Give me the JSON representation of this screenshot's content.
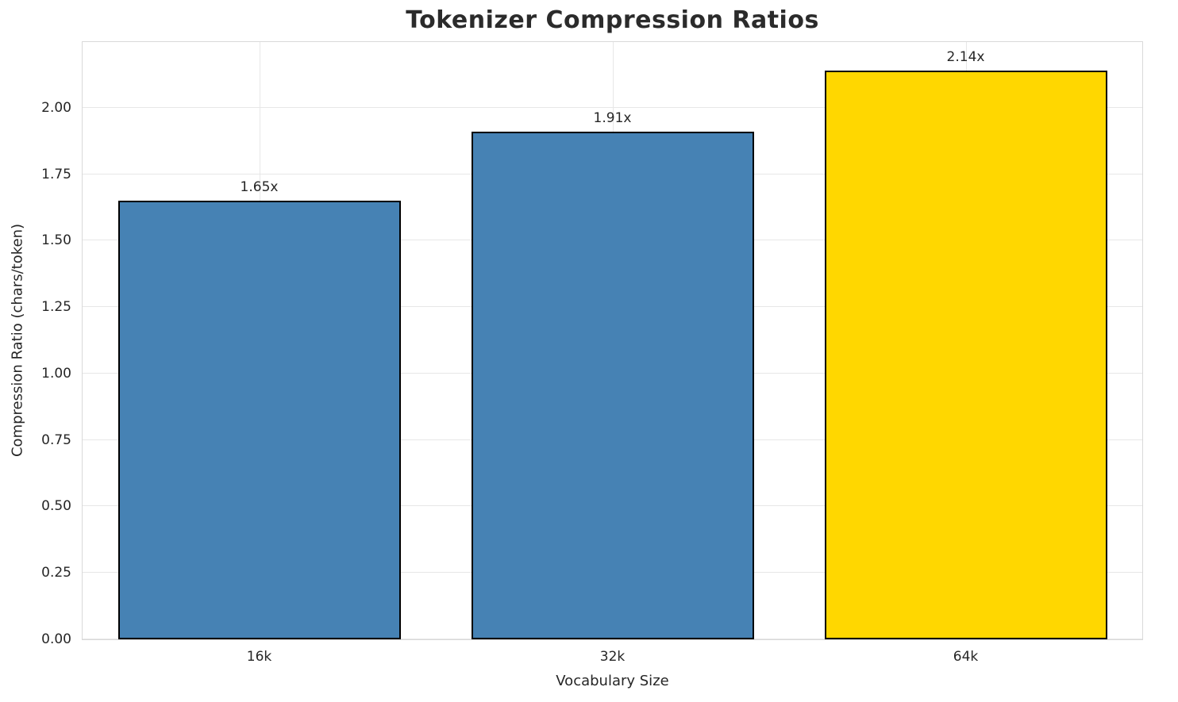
{
  "chart_data": {
    "type": "bar",
    "title": "Tokenizer Compression Ratios",
    "xlabel": "Vocabulary Size",
    "ylabel": "Compression Ratio (chars/token)",
    "categories": [
      "16k",
      "32k",
      "64k"
    ],
    "values": [
      1.65,
      1.91,
      2.14
    ],
    "bar_labels": [
      "1.65x",
      "1.91x",
      "2.14x"
    ],
    "bar_colors": [
      "#4682B4",
      "#4682B4",
      "#FFD700"
    ],
    "bar_edge_color": "#000000",
    "bar_width_fraction": 0.8,
    "ylim": [
      0,
      2.247
    ],
    "yticks": [
      0.0,
      0.25,
      0.5,
      0.75,
      1.0,
      1.25,
      1.5,
      1.75,
      2.0
    ],
    "ytick_labels": [
      "0.00",
      "0.25",
      "0.50",
      "0.75",
      "1.00",
      "1.25",
      "1.50",
      "1.75",
      "2.00"
    ],
    "grid": true,
    "grid_color": "#e7e7e7",
    "legend": "none",
    "background": "#ffffff"
  }
}
